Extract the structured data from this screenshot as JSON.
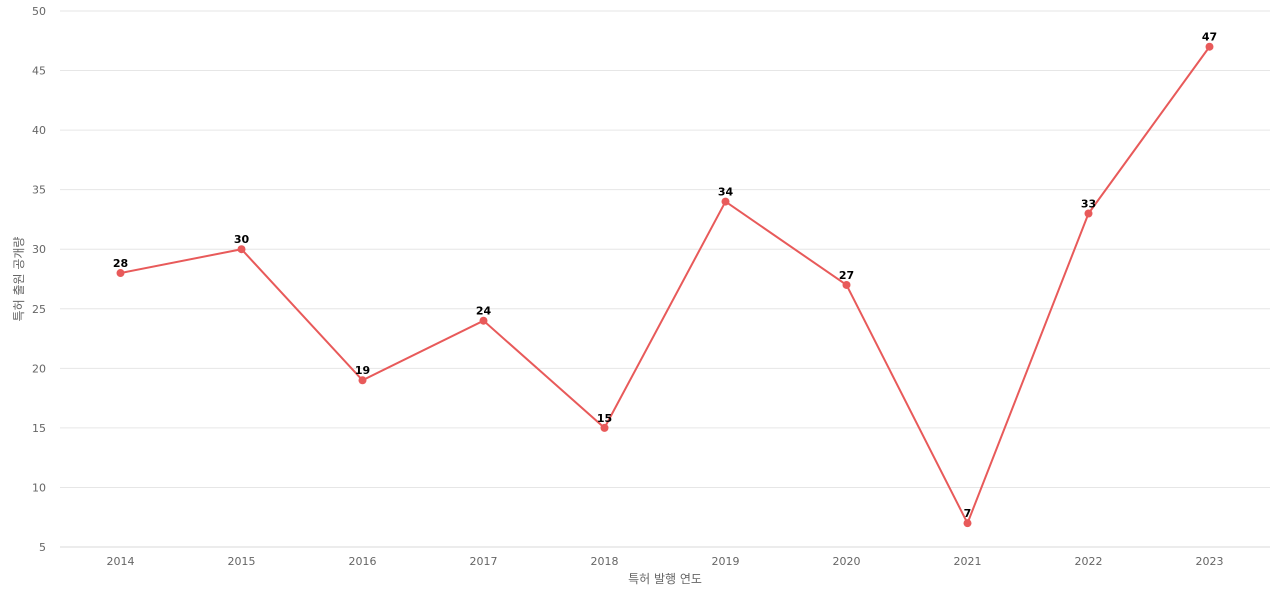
{
  "chart_data": {
    "type": "line",
    "title": "",
    "xlabel": "특허 발행 연도",
    "ylabel": "특허 출원 공개량",
    "categories": [
      "2014",
      "2015",
      "2016",
      "2017",
      "2018",
      "2019",
      "2020",
      "2021",
      "2022",
      "2023"
    ],
    "series": [
      {
        "values": [
          28,
          30,
          19,
          24,
          15,
          34,
          27,
          7,
          33,
          47
        ]
      }
    ],
    "ylim": [
      5,
      50
    ],
    "yticks": [
      5,
      10,
      15,
      20,
      25,
      30,
      35,
      40,
      45,
      50
    ],
    "grid": true,
    "legend": "none",
    "colors": {
      "line": "#e85a5a",
      "point": "#e85a5a",
      "grid": "#e6e6e6",
      "label": "#000000"
    }
  }
}
